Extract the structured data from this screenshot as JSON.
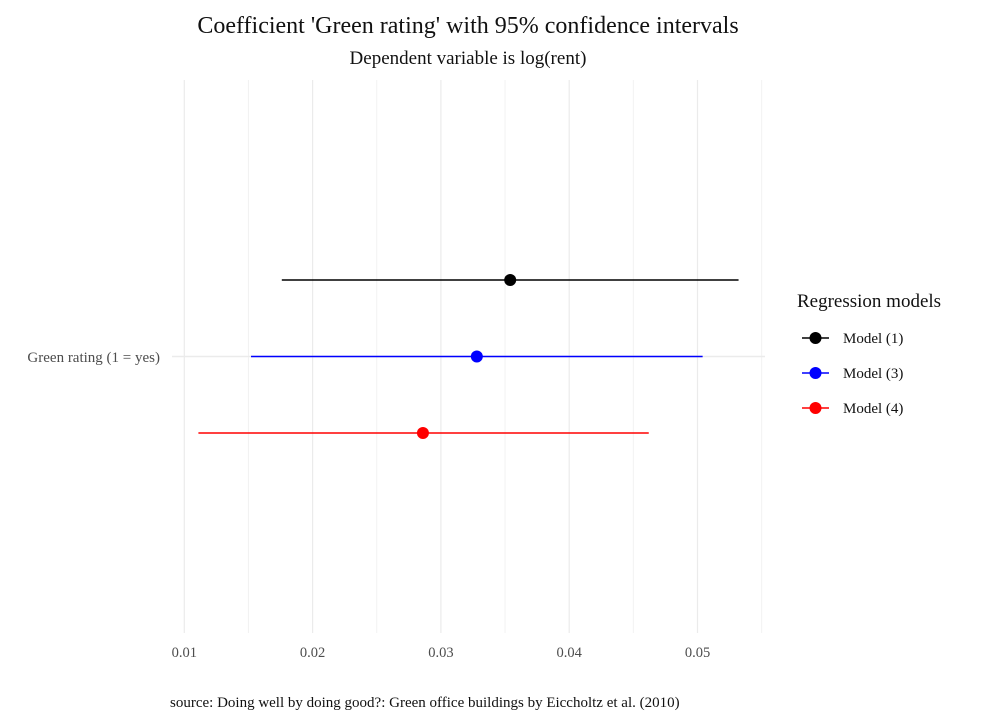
{
  "chart_data": {
    "type": "scatter",
    "subtype": "coefficient-plot-with-error-bars",
    "title": "Coefficient 'Green rating' with 95% confidence intervals",
    "subtitle": "Dependent variable is log(rent)",
    "caption": "source: Doing well by doing good?: Green office buildings by Eiccholtz et al. (2010)",
    "xlabel": "",
    "ylabel": "",
    "xlim": [
      0.009,
      0.055
    ],
    "x_ticks": [
      0.01,
      0.02,
      0.03,
      0.04,
      0.05
    ],
    "x_tick_labels": [
      "0.01",
      "0.02",
      "0.03",
      "0.04",
      "0.05"
    ],
    "x_minor_ticks": [
      0.015,
      0.025,
      0.035,
      0.045,
      0.055
    ],
    "categories": [
      "Green rating (1 = yes)"
    ],
    "grid": true,
    "legend": {
      "title": "Regression models",
      "position": "right"
    },
    "series": [
      {
        "name": "Model (1)",
        "color": "#000000",
        "estimate": 0.0354,
        "ci_low": 0.0176,
        "ci_high": 0.0532
      },
      {
        "name": "Model (3)",
        "color": "#0000ff",
        "estimate": 0.0328,
        "ci_low": 0.0152,
        "ci_high": 0.0504
      },
      {
        "name": "Model (4)",
        "color": "#ff0000",
        "estimate": 0.0286,
        "ci_low": 0.0111,
        "ci_high": 0.0462
      }
    ]
  }
}
